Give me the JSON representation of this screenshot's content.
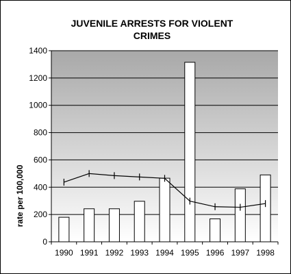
{
  "chart_data": {
    "type": "bar",
    "title_lines": [
      "JUVENILE ARRESTS FOR VIOLENT",
      "CRIMES"
    ],
    "xlabel": "",
    "ylabel": "rate per 100,000",
    "ylim": [
      0,
      1400
    ],
    "yticks": [
      0,
      200,
      400,
      600,
      800,
      1000,
      1200,
      1400
    ],
    "categories": [
      "1990",
      "1991",
      "1992",
      "1993",
      "1994",
      "1995",
      "1996",
      "1997",
      "1998"
    ],
    "series": [
      {
        "type": "bar",
        "values": [
          180,
          242,
          242,
          297,
          466,
          1315,
          168,
          388,
          490
        ]
      },
      {
        "type": "line",
        "values": [
          437,
          500,
          485,
          475,
          465,
          298,
          257,
          253,
          280
        ]
      }
    ],
    "grid": true,
    "legend": "none",
    "colors": {
      "bar_fill": "#ffffff",
      "bar_stroke": "#000000",
      "line": "#000000",
      "plot_gradient_top": "#a8a8a8",
      "plot_gradient_bottom": "#ffffff",
      "gridline": "#000000"
    }
  }
}
